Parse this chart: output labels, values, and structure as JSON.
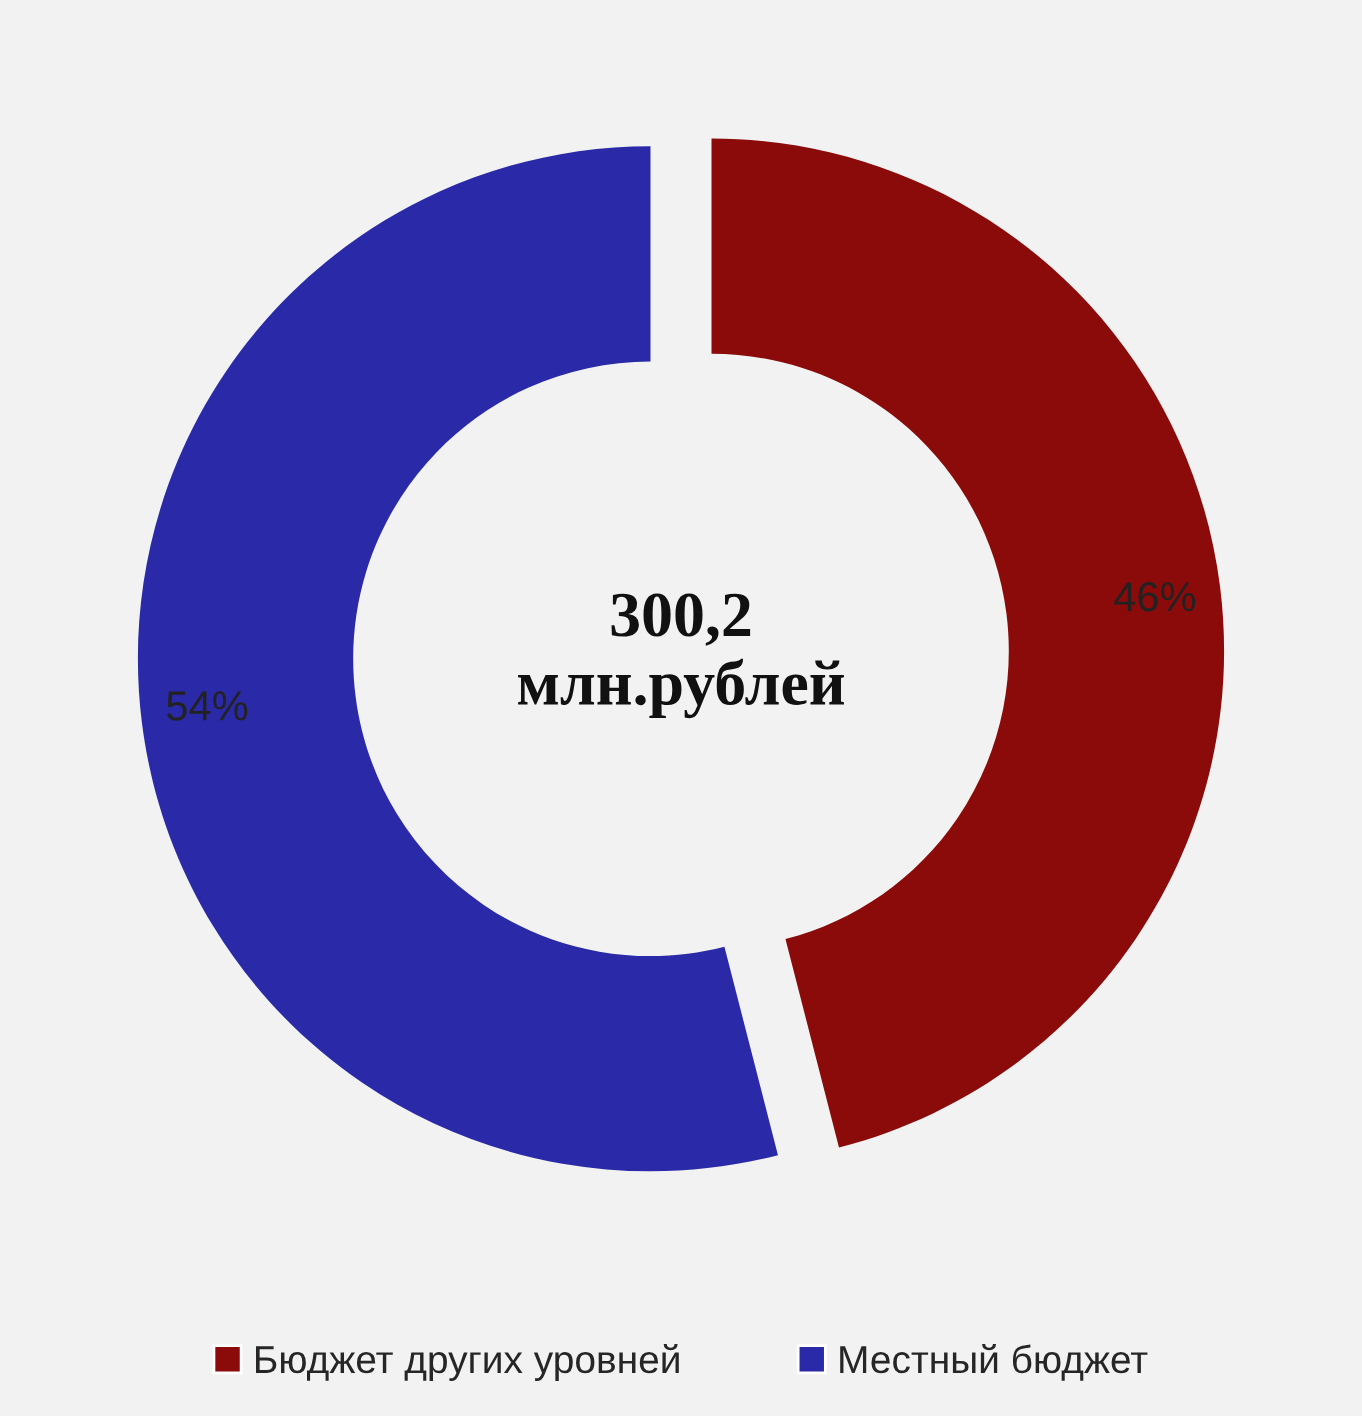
{
  "chart_data": {
    "type": "donut",
    "categories": [
      "Бюджет других уровней",
      "Местный бюджет"
    ],
    "values": [
      46,
      54
    ],
    "colors": [
      "#8b0b0b",
      "#2a2aa8"
    ],
    "value_labels": [
      "46%",
      "54%"
    ],
    "annotations": [
      "300,2\nмлн.рублей"
    ],
    "legend": "bottom"
  }
}
